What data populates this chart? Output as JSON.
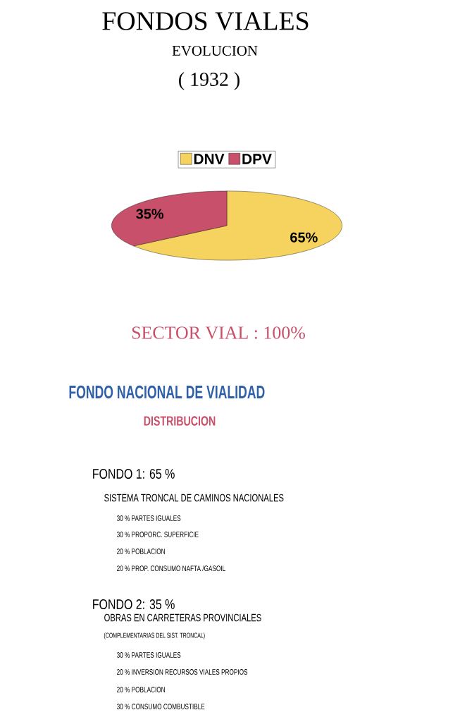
{
  "chart_data": [
    {
      "type": "pie",
      "title": "FONDOS VIALES",
      "subtitle": "EVOLUCION",
      "annotations": [
        "( 1932 )",
        "SECTOR VIAL : 100%"
      ],
      "categories": [
        "DNV",
        "DPV"
      ],
      "values": [
        65,
        35
      ],
      "colors": [
        "#f5d35e",
        "#c8506a"
      ],
      "value_labels": [
        "65%",
        "35%"
      ],
      "legend": "top"
    },
    {
      "type": "other",
      "title": "FONDO NACIONAL DE VIALIDAD",
      "subtitle": "DISTRIBUCION",
      "annotations": [
        "FONDO 1: 65 %",
        "SISTEMA TRONCAL DE CAMINOS NACIONALES",
        "30 % PARTES IGUALES",
        "30 % PROPORC. SUPERFICIE",
        "20 % POBLACION",
        "20 %  PROP. CONSUMO NAFTA /GASOIL",
        "FONDO 2: 35 %",
        "OBRAS EN CARRETERAS PROVINCIALES",
        "(COMPLEMENTARIAS DEL SIST. TRONCAL)",
        "30 % PARTES IGUALES",
        "20 % INVERSION RECURSOS VIALES PROPIOS",
        "20 % POBLACION",
        "30 % CONSUMO COMBUSTIBLE"
      ]
    }
  ]
}
